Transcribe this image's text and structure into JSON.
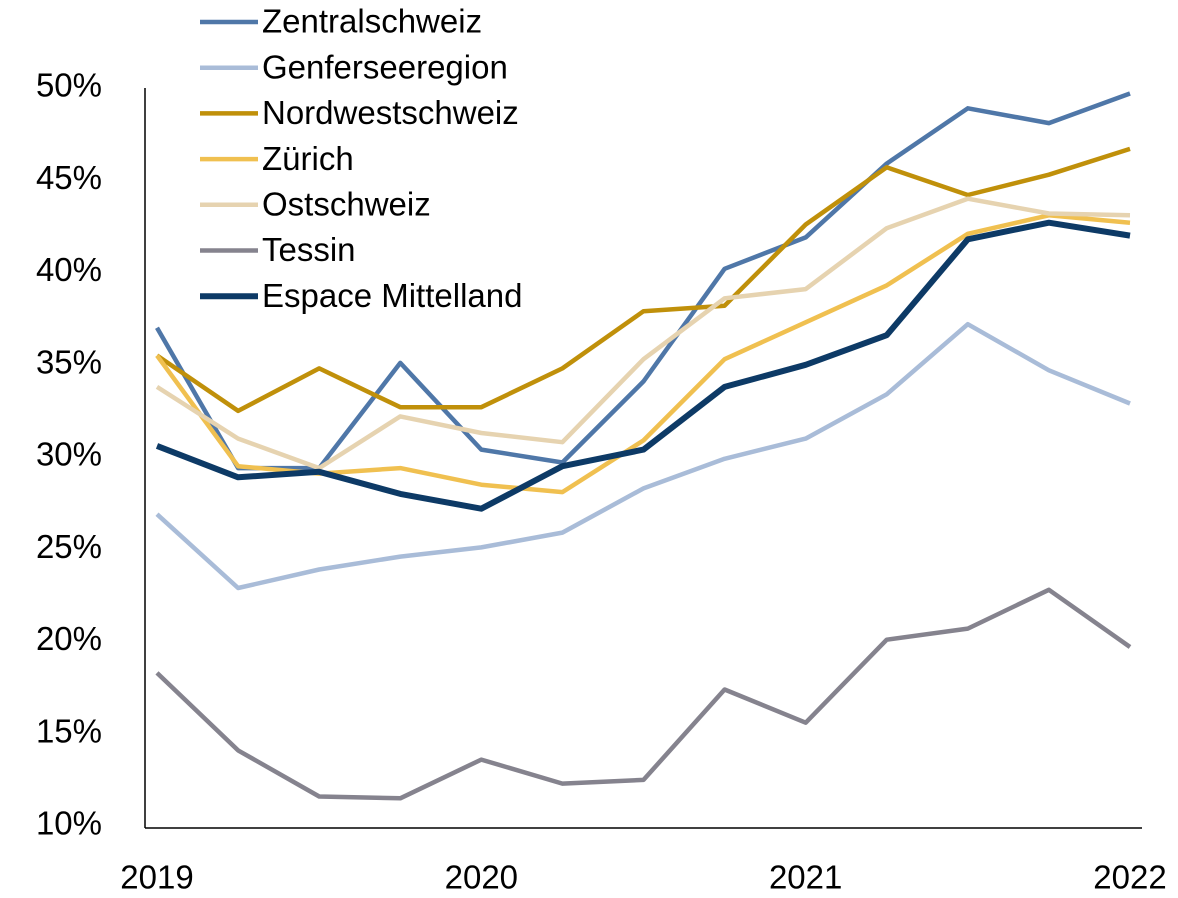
{
  "chart_data": {
    "type": "line",
    "x": [
      2019,
      2019.25,
      2019.5,
      2019.75,
      2020,
      2020.25,
      2020.5,
      2020.75,
      2021,
      2021.25,
      2021.5,
      2021.75,
      2022
    ],
    "series": [
      {
        "name": "Zentralschweiz",
        "color": "#4f77a8",
        "values": [
          37.0,
          29.4,
          29.4,
          35.1,
          30.4,
          29.7,
          34.1,
          40.2,
          41.9,
          45.9,
          48.9,
          48.1,
          49.7
        ]
      },
      {
        "name": "Genferseeregion",
        "color": "#a9bcd8",
        "values": [
          26.9,
          22.9,
          23.9,
          24.6,
          25.1,
          25.9,
          28.3,
          29.9,
          31.0,
          33.4,
          37.2,
          34.7,
          32.9
        ]
      },
      {
        "name": "Nordwestschweiz",
        "color": "#c0900a",
        "values": [
          35.5,
          32.5,
          34.8,
          32.7,
          32.7,
          34.8,
          37.9,
          38.2,
          42.6,
          45.7,
          44.2,
          45.3,
          46.7
        ]
      },
      {
        "name": "Zürich",
        "color": "#f0c050",
        "values": [
          35.5,
          29.5,
          29.1,
          29.4,
          28.5,
          28.1,
          30.9,
          35.3,
          37.3,
          39.3,
          42.1,
          43.1,
          42.7
        ]
      },
      {
        "name": "Ostschweiz",
        "color": "#e6d3b0",
        "values": [
          33.8,
          31.0,
          29.4,
          32.2,
          31.3,
          30.8,
          35.3,
          38.6,
          39.1,
          42.4,
          44.0,
          43.2,
          43.1
        ]
      },
      {
        "name": "Tessin",
        "color": "#85838e",
        "values": [
          18.3,
          14.1,
          11.6,
          11.5,
          13.6,
          12.3,
          12.5,
          17.4,
          15.6,
          20.1,
          20.7,
          22.8,
          19.7
        ]
      },
      {
        "name": "Espace Mittelland",
        "color": "#0d3a66",
        "values": [
          30.6,
          28.9,
          29.2,
          28.0,
          27.2,
          29.5,
          30.4,
          33.8,
          35.0,
          36.6,
          41.8,
          42.7,
          42.0
        ]
      }
    ],
    "xlim": [
      2018.963,
      2022.037
    ],
    "xticks": [
      2019,
      2020,
      2021,
      2022
    ],
    "ylim": [
      10,
      50
    ],
    "yticks": [
      {
        "value": 10,
        "label": "10%"
      },
      {
        "value": 15,
        "label": "15%"
      },
      {
        "value": 20,
        "label": "20%"
      },
      {
        "value": 25,
        "label": "25%"
      },
      {
        "value": 30,
        "label": "30%"
      },
      {
        "value": 35,
        "label": "35%"
      },
      {
        "value": 40,
        "label": "40%"
      },
      {
        "value": 45,
        "label": "45%"
      },
      {
        "value": 50,
        "label": "50%"
      }
    ],
    "grid": false,
    "legend": "top-left"
  }
}
